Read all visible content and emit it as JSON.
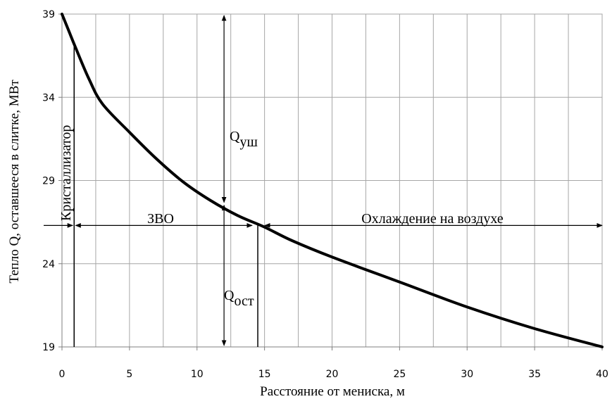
{
  "chart_data": {
    "type": "line",
    "title": "",
    "xlabel": "Расстояние от мениска, м",
    "ylabel": "Тепло Q, оставшееся в слитке, МВт",
    "xlim": [
      0,
      40
    ],
    "ylim": [
      19,
      39
    ],
    "x_ticks": [
      0,
      5,
      10,
      15,
      20,
      25,
      30,
      35,
      40
    ],
    "y_ticks": [
      19,
      24,
      29,
      34,
      39
    ],
    "grid": true,
    "series": [
      {
        "color": "#000000",
        "points": [
          [
            0,
            39.0
          ],
          [
            0.5,
            38.0
          ],
          [
            1,
            37.0
          ],
          [
            2,
            35.1
          ],
          [
            3,
            33.6
          ],
          [
            5,
            31.9
          ],
          [
            7,
            30.3
          ],
          [
            9,
            28.9
          ],
          [
            11,
            27.8
          ],
          [
            13,
            26.9
          ],
          [
            15,
            26.2
          ],
          [
            17,
            25.4
          ],
          [
            20,
            24.4
          ],
          [
            25,
            22.9
          ],
          [
            30,
            21.4
          ],
          [
            35,
            20.1
          ],
          [
            40,
            19.0
          ]
        ]
      }
    ],
    "annotations": {
      "mold_label": "Кристаллизатор",
      "mold_x": 0.9,
      "zvo_label": "ЗВО",
      "air_label": "Охлаждение на воздухе",
      "q_loss_main": "Q",
      "q_loss_sub": "уш",
      "q_rem_main": "Q",
      "q_rem_sub": "ост",
      "divider_y": 26.3,
      "end_zvo_x": 14.5,
      "q_arrow_x": 12,
      "q_split_y": 27.6
    }
  }
}
